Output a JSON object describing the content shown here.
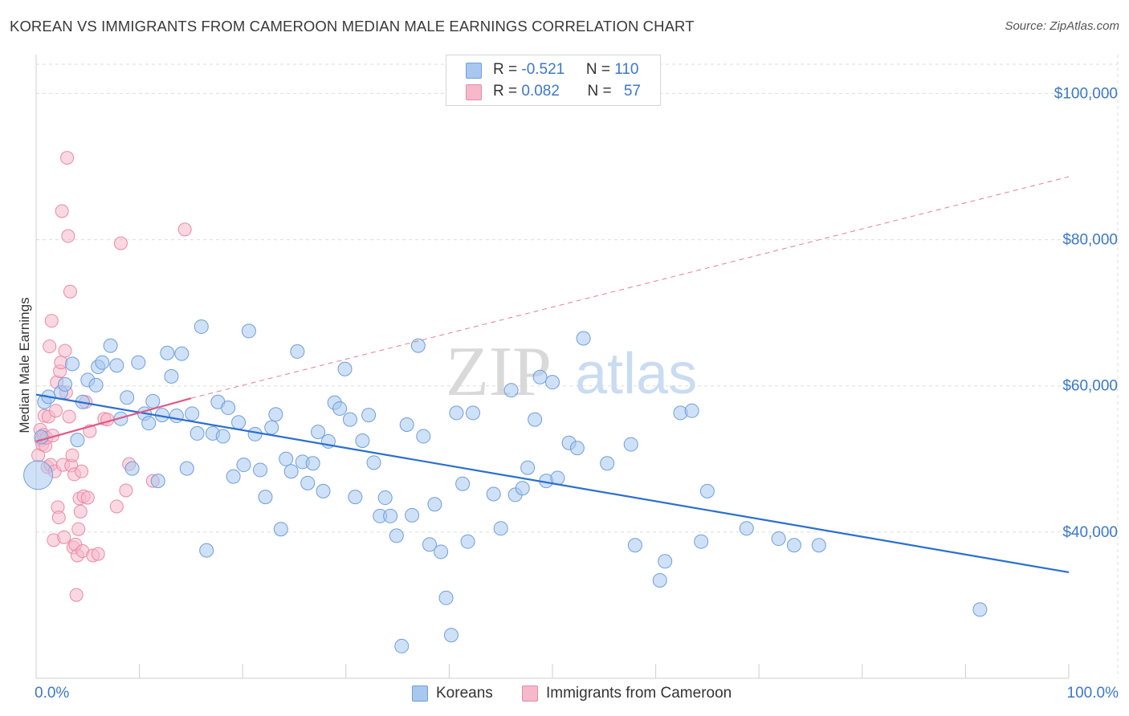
{
  "header": {
    "title": "KOREAN VS IMMIGRANTS FROM CAMEROON MEDIAN MALE EARNINGS CORRELATION CHART",
    "source": "Source: ZipAtlas.com"
  },
  "watermark": {
    "zip": "ZIP",
    "atlas": "atlas"
  },
  "legend": {
    "rows": [
      {
        "r_label": "R = ",
        "r_value": "-0.521",
        "n_label": "N = ",
        "n_value": "110",
        "color": "#a8c8f0"
      },
      {
        "r_label": "R = ",
        "r_value": "0.082",
        "n_label": "N = ",
        "n_value": "57",
        "color": "#f6b8cb"
      }
    ]
  },
  "bottom_legend": {
    "koreans": "Koreans",
    "cameroon": "Immigrants from Cameroon"
  },
  "colors": {
    "blue_fill": "#a8c8f0",
    "blue_stroke": "#6f9fd8",
    "blue_line": "#2a6fd0",
    "pink_fill": "#f6b8cb",
    "pink_stroke": "#e98aa8",
    "pink_line": "#e05a88",
    "grid": "#dddddd",
    "axis_text": "#3b78c8"
  },
  "chart_data": {
    "type": "scatter",
    "title": "KOREAN VS IMMIGRANTS FROM CAMEROON MEDIAN MALE EARNINGS CORRELATION CHART",
    "xlabel": "",
    "ylabel": "Median Male Earnings",
    "xlim": [
      0,
      100
    ],
    "ylim": [
      20000,
      104000
    ],
    "x_tick_labels": [
      "0.0%",
      "100.0%"
    ],
    "y_ticks": [
      40000,
      60000,
      80000,
      100000
    ],
    "y_tick_labels": [
      "$40,000",
      "$60,000",
      "$80,000",
      "$100,000"
    ],
    "grid": true,
    "legend_position": "top-center",
    "series": [
      {
        "name": "Koreans",
        "r": -0.521,
        "n": 110,
        "trend": {
          "x": [
            0,
            100
          ],
          "y": [
            58800,
            34500
          ],
          "dashed_beyond": null
        },
        "points": [
          [
            0.2,
            47800
          ],
          [
            0.5,
            53000
          ],
          [
            0.8,
            57800
          ],
          [
            1.2,
            58500
          ],
          [
            2.4,
            59100
          ],
          [
            2.8,
            60200
          ],
          [
            3.5,
            63000
          ],
          [
            4.0,
            52600
          ],
          [
            4.5,
            57800
          ],
          [
            5.0,
            60800
          ],
          [
            5.8,
            60100
          ],
          [
            6.0,
            62600
          ],
          [
            6.4,
            63200
          ],
          [
            7.2,
            65500
          ],
          [
            7.8,
            62800
          ],
          [
            8.2,
            55500
          ],
          [
            8.8,
            58400
          ],
          [
            9.3,
            48700
          ],
          [
            9.9,
            63200
          ],
          [
            10.5,
            56200
          ],
          [
            10.9,
            54900
          ],
          [
            11.3,
            57900
          ],
          [
            11.8,
            47000
          ],
          [
            12.2,
            56000
          ],
          [
            12.7,
            64500
          ],
          [
            13.1,
            61300
          ],
          [
            13.6,
            55900
          ],
          [
            14.1,
            64400
          ],
          [
            14.6,
            48700
          ],
          [
            15.1,
            56200
          ],
          [
            15.6,
            53500
          ],
          [
            16.0,
            68100
          ],
          [
            16.5,
            37500
          ],
          [
            17.1,
            53500
          ],
          [
            17.6,
            57800
          ],
          [
            18.1,
            53100
          ],
          [
            18.6,
            57000
          ],
          [
            19.1,
            47600
          ],
          [
            19.6,
            55000
          ],
          [
            20.1,
            49200
          ],
          [
            20.6,
            67500
          ],
          [
            21.2,
            53400
          ],
          [
            21.7,
            48500
          ],
          [
            22.2,
            44800
          ],
          [
            22.8,
            54300
          ],
          [
            23.2,
            56100
          ],
          [
            23.7,
            40400
          ],
          [
            24.2,
            50000
          ],
          [
            24.7,
            48300
          ],
          [
            25.3,
            64700
          ],
          [
            25.8,
            49600
          ],
          [
            26.3,
            46700
          ],
          [
            26.8,
            49400
          ],
          [
            27.3,
            53700
          ],
          [
            27.8,
            45600
          ],
          [
            28.3,
            52400
          ],
          [
            28.9,
            57700
          ],
          [
            29.4,
            56900
          ],
          [
            29.9,
            62300
          ],
          [
            30.4,
            55400
          ],
          [
            30.9,
            44800
          ],
          [
            31.6,
            52500
          ],
          [
            32.2,
            56000
          ],
          [
            32.7,
            49500
          ],
          [
            33.3,
            42200
          ],
          [
            33.8,
            44700
          ],
          [
            34.3,
            42200
          ],
          [
            34.9,
            39500
          ],
          [
            35.4,
            24400
          ],
          [
            35.9,
            54700
          ],
          [
            36.4,
            42300
          ],
          [
            37.0,
            65500
          ],
          [
            37.5,
            53100
          ],
          [
            38.1,
            38300
          ],
          [
            38.6,
            43800
          ],
          [
            39.2,
            37300
          ],
          [
            39.7,
            31000
          ],
          [
            40.2,
            25900
          ],
          [
            40.7,
            56300
          ],
          [
            41.3,
            46600
          ],
          [
            41.8,
            38700
          ],
          [
            42.3,
            56300
          ],
          [
            44.3,
            45200
          ],
          [
            45.0,
            40500
          ],
          [
            46.0,
            59400
          ],
          [
            46.4,
            45100
          ],
          [
            47.1,
            46000
          ],
          [
            47.6,
            48800
          ],
          [
            48.3,
            55400
          ],
          [
            48.8,
            61200
          ],
          [
            49.4,
            47000
          ],
          [
            50.0,
            60500
          ],
          [
            50.5,
            47400
          ],
          [
            51.6,
            52200
          ],
          [
            52.4,
            51500
          ],
          [
            53.0,
            66500
          ],
          [
            55.3,
            49400
          ],
          [
            57.6,
            52000
          ],
          [
            58.0,
            38200
          ],
          [
            60.4,
            33400
          ],
          [
            60.9,
            36000
          ],
          [
            62.4,
            56300
          ],
          [
            63.5,
            56600
          ],
          [
            64.4,
            38700
          ],
          [
            65.0,
            45600
          ],
          [
            68.8,
            40500
          ],
          [
            71.9,
            39100
          ],
          [
            73.4,
            38200
          ],
          [
            75.8,
            38200
          ],
          [
            91.4,
            29400
          ]
        ]
      },
      {
        "name": "Immigrants from Cameroon",
        "r": 0.082,
        "n": 57,
        "trend": {
          "x": [
            0,
            15
          ],
          "y": [
            52400,
            58300
          ],
          "dashed_to": {
            "x": 100,
            "y": 88600
          }
        },
        "points": [
          [
            0.2,
            50500
          ],
          [
            0.4,
            54000
          ],
          [
            0.5,
            52600
          ],
          [
            0.6,
            52000
          ],
          [
            0.7,
            53300
          ],
          [
            0.8,
            55900
          ],
          [
            0.9,
            51800
          ],
          [
            1.0,
            52900
          ],
          [
            1.1,
            48900
          ],
          [
            1.2,
            55800
          ],
          [
            1.3,
            65400
          ],
          [
            1.4,
            49200
          ],
          [
            1.5,
            68900
          ],
          [
            1.6,
            53200
          ],
          [
            1.7,
            38900
          ],
          [
            1.8,
            48300
          ],
          [
            1.9,
            56600
          ],
          [
            2.0,
            60500
          ],
          [
            2.1,
            43400
          ],
          [
            2.2,
            42000
          ],
          [
            2.3,
            62000
          ],
          [
            2.4,
            63200
          ],
          [
            2.5,
            83900
          ],
          [
            2.6,
            49200
          ],
          [
            2.7,
            39300
          ],
          [
            2.8,
            64800
          ],
          [
            2.9,
            59100
          ],
          [
            3.0,
            91200
          ],
          [
            3.1,
            80500
          ],
          [
            3.2,
            55800
          ],
          [
            3.3,
            72900
          ],
          [
            3.4,
            49100
          ],
          [
            3.5,
            50500
          ],
          [
            3.6,
            37900
          ],
          [
            3.7,
            47900
          ],
          [
            3.8,
            38300
          ],
          [
            3.9,
            31400
          ],
          [
            4.0,
            36800
          ],
          [
            4.1,
            40400
          ],
          [
            4.2,
            44600
          ],
          [
            4.3,
            42800
          ],
          [
            4.4,
            48300
          ],
          [
            4.5,
            37400
          ],
          [
            4.6,
            44900
          ],
          [
            4.8,
            57800
          ],
          [
            5.0,
            44700
          ],
          [
            5.2,
            53800
          ],
          [
            5.5,
            36800
          ],
          [
            6.0,
            37000
          ],
          [
            6.6,
            55500
          ],
          [
            6.9,
            55400
          ],
          [
            7.8,
            43500
          ],
          [
            8.2,
            79500
          ],
          [
            8.7,
            45700
          ],
          [
            9.0,
            49300
          ],
          [
            11.3,
            47000
          ],
          [
            14.4,
            81400
          ]
        ]
      }
    ]
  }
}
